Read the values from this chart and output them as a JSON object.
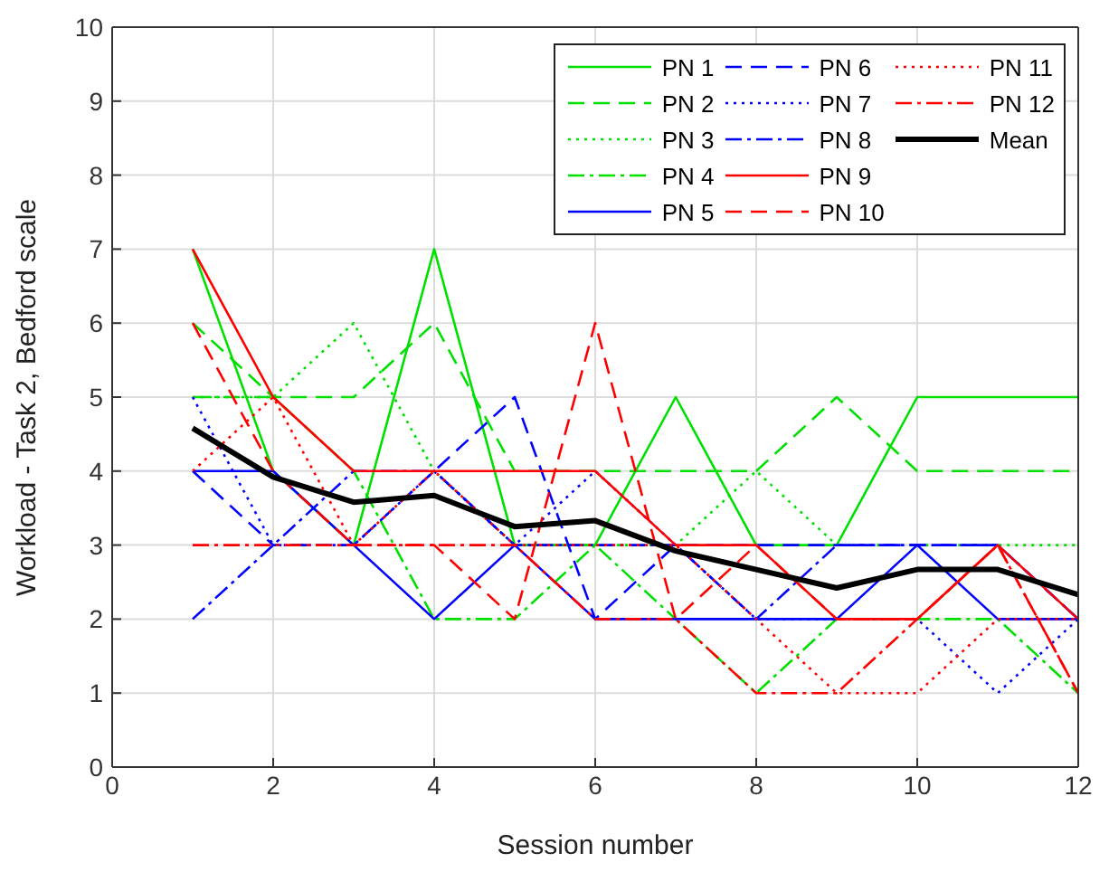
{
  "chart_data": {
    "type": "line",
    "xlabel": "Session number",
    "ylabel": "Workload - Task 2, Bedford scale",
    "x": [
      1,
      2,
      3,
      4,
      5,
      6,
      7,
      8,
      9,
      10,
      11,
      12
    ],
    "xlim": [
      0,
      12
    ],
    "xticks": [
      0,
      2,
      4,
      6,
      8,
      10,
      12
    ],
    "ylim": [
      0,
      10
    ],
    "yticks": [
      0,
      1,
      2,
      3,
      4,
      5,
      6,
      7,
      8,
      9,
      10
    ],
    "grid": true,
    "legend": "top right",
    "marker": "none",
    "series": [
      {
        "name": "PN 1",
        "color": "#00e000",
        "line_style": "solid",
        "values": [
          7,
          4,
          3,
          7,
          3,
          3,
          5,
          3,
          3,
          5,
          5,
          5
        ]
      },
      {
        "name": "PN 2",
        "color": "#00e000",
        "line_style": "dashed",
        "values": [
          6,
          5,
          5,
          6,
          4,
          4,
          4,
          4,
          5,
          4,
          4,
          4
        ]
      },
      {
        "name": "PN 3",
        "color": "#00e000",
        "line_style": "dotted",
        "values": [
          5,
          5,
          6,
          4,
          3,
          3,
          3,
          4,
          3,
          3,
          3,
          3
        ]
      },
      {
        "name": "PN 4",
        "color": "#00e000",
        "line_style": "dashdot",
        "values": [
          5,
          5,
          4,
          2,
          2,
          3,
          2,
          1,
          2,
          2,
          2,
          1
        ]
      },
      {
        "name": "PN 5",
        "color": "#0000ff",
        "line_style": "solid",
        "values": [
          4,
          4,
          3,
          2,
          3,
          2,
          2,
          2,
          2,
          3,
          2,
          2
        ]
      },
      {
        "name": "PN 6",
        "color": "#0000ff",
        "line_style": "dashed",
        "values": [
          4,
          3,
          3,
          4,
          5,
          2,
          3,
          3,
          3,
          3,
          3,
          2
        ]
      },
      {
        "name": "PN 7",
        "color": "#0000ff",
        "line_style": "dotted",
        "values": [
          5,
          3,
          3,
          4,
          3,
          4,
          3,
          2,
          2,
          2,
          1,
          2
        ]
      },
      {
        "name": "PN 8",
        "color": "#0000ff",
        "line_style": "dashdot",
        "values": [
          2,
          3,
          4,
          4,
          3,
          3,
          3,
          2,
          3,
          3,
          3,
          2
        ]
      },
      {
        "name": "PN 9",
        "color": "#ff0000",
        "line_style": "solid",
        "values": [
          7,
          5,
          4,
          4,
          4,
          4,
          3,
          3,
          2,
          2,
          3,
          2
        ]
      },
      {
        "name": "PN 10",
        "color": "#ff0000",
        "line_style": "dashed",
        "values": [
          6,
          4,
          3,
          3,
          2,
          6,
          2,
          3,
          2,
          2,
          3,
          1
        ]
      },
      {
        "name": "PN 11",
        "color": "#ff0000",
        "line_style": "dotted",
        "values": [
          4,
          5,
          3,
          4,
          3,
          3,
          3,
          2,
          1,
          1,
          2,
          2
        ]
      },
      {
        "name": "PN 12",
        "color": "#ff0000",
        "line_style": "dashdot",
        "values": [
          3,
          3,
          3,
          3,
          3,
          2,
          2,
          1,
          1,
          2,
          3,
          1
        ]
      },
      {
        "name": "Mean",
        "color": "#000000",
        "line_style": "solid",
        "values": [
          4.58,
          3.92,
          3.58,
          3.67,
          3.25,
          3.33,
          2.92,
          2.67,
          2.42,
          2.67,
          2.67,
          2.33
        ]
      }
    ]
  }
}
